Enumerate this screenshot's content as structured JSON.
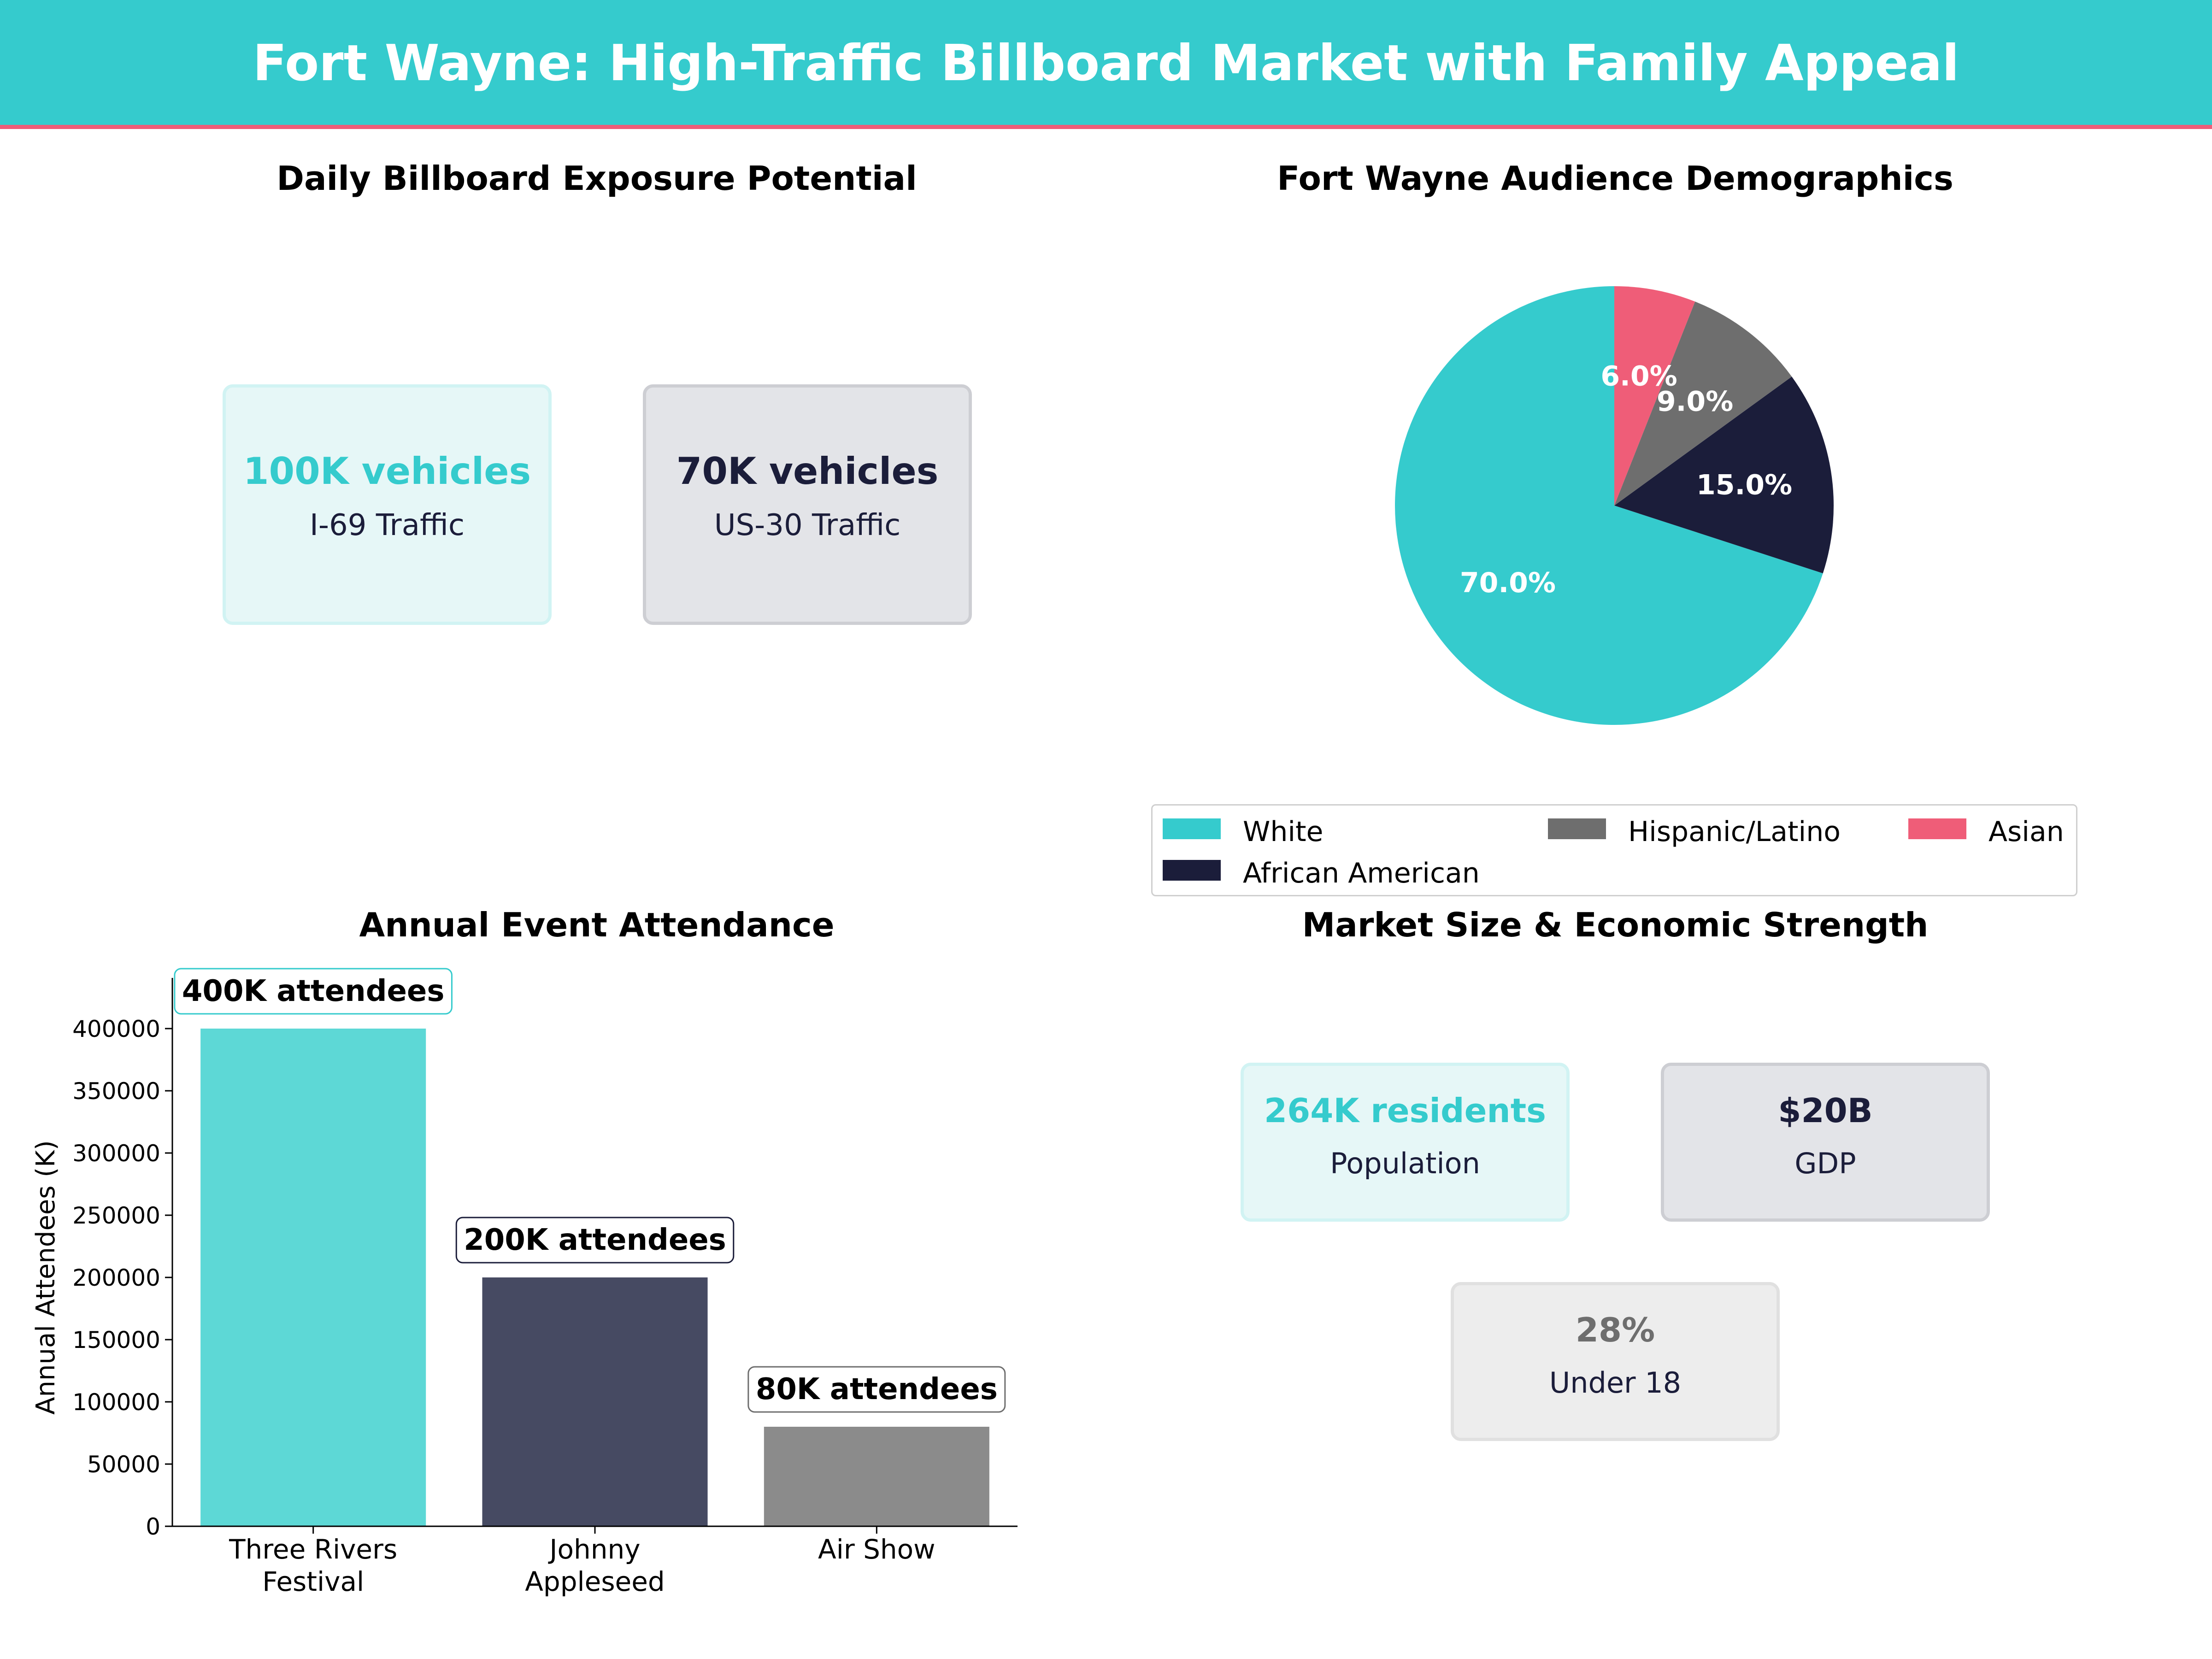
{
  "header": {
    "title": "Fort Wayne: High-Traffic Billboard Market with Family Appeal"
  },
  "colors": {
    "teal": "#35CBCD",
    "navy": "#1B1D3A",
    "gray": "#6E6E6E",
    "pink": "#EF5D78"
  },
  "exposure": {
    "title": "Daily Billboard Exposure Potential",
    "cards": [
      {
        "value": "100K vehicles",
        "label": "I-69  Traffic"
      },
      {
        "value": "70K vehicles",
        "label": "US-30  Traffic"
      }
    ]
  },
  "demographics": {
    "title": "Fort Wayne Audience Demographics",
    "legend": [
      "White",
      "African American",
      "Hispanic/Latino",
      "Asian"
    ]
  },
  "events": {
    "title": "Annual Event Attendance"
  },
  "market": {
    "title": "Market Size & Economic Strength",
    "cards": [
      {
        "value": "264K residents",
        "label": "Population"
      },
      {
        "value": "$20B",
        "label": "GDP"
      },
      {
        "value": "28%",
        "label": "Under 18"
      }
    ]
  },
  "chart_data": [
    {
      "type": "pie",
      "title": "Fort Wayne Audience Demographics",
      "categories": [
        "White",
        "African American",
        "Hispanic/Latino",
        "Asian"
      ],
      "values": [
        70.0,
        15.0,
        9.0,
        6.0
      ],
      "value_labels": [
        "70.0%",
        "15.0%",
        "9.0%",
        "6.0%"
      ],
      "colors": [
        "#35CBCD",
        "#1B1D3A",
        "#6E6E6E",
        "#EF5D78"
      ],
      "legend": "bottom"
    },
    {
      "type": "bar",
      "title": "Annual Event Attendance",
      "categories": [
        "Three Rivers\nFestival",
        "Johnny\nAppleseed",
        "Air Show"
      ],
      "values": [
        400000,
        200000,
        80000
      ],
      "data_labels": [
        "400K attendees",
        "200K attendees",
        "80K attendees"
      ],
      "colors": [
        "#5DD8D6",
        "#464A62",
        "#8B8B8B"
      ],
      "label_border_colors": [
        "#35CBCD",
        "#1B1D3A",
        "#6E6E6E"
      ],
      "xlabel": "",
      "ylabel": "Annual Attendees (K)",
      "ylim": [
        0,
        400000
      ],
      "yticks": [
        "0",
        "50000",
        "100000",
        "150000",
        "200000",
        "250000",
        "300000",
        "350000",
        "400000"
      ],
      "grid": false
    }
  ]
}
